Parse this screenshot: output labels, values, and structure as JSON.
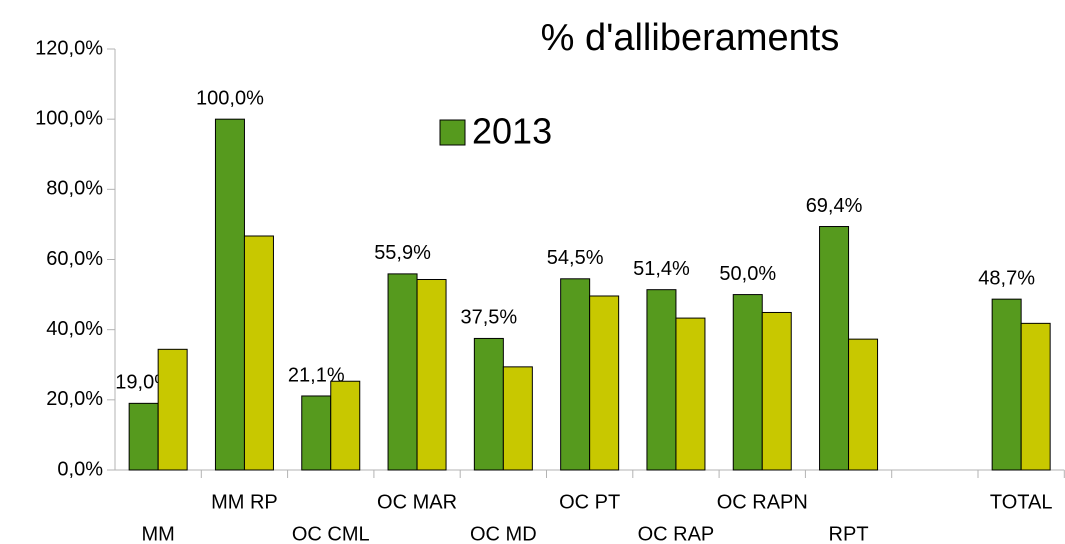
{
  "chart_data": {
    "type": "bar",
    "title": "% d'alliberaments",
    "categories": [
      "MM",
      "MM RP",
      "OC CML",
      "OC MAR",
      "OC MD",
      "OC PT",
      "OC RAP",
      "OC RAPN",
      "RPT",
      null,
      "TOTAL"
    ],
    "series": [
      {
        "name": "2013",
        "color": "#569a1e",
        "values": [
          19.0,
          100.0,
          21.1,
          55.9,
          37.5,
          54.5,
          51.4,
          50.0,
          69.4,
          null,
          48.7
        ],
        "value_labels": [
          "19,0%",
          "100,0%",
          "21,1%",
          "55,9%",
          "37,5%",
          "54,5%",
          "51,4%",
          "50,0%",
          "69,4%",
          null,
          "48,7%"
        ]
      },
      {
        "color": "#c8c800",
        "values": [
          34.4,
          66.7,
          25.3,
          54.3,
          29.4,
          49.6,
          43.3,
          44.9,
          37.3,
          null,
          41.8
        ]
      }
    ],
    "ylim": [
      0,
      120
    ],
    "yticks": [
      {
        "value": 0,
        "label": "0,0%"
      },
      {
        "value": 20,
        "label": "20,0%"
      },
      {
        "value": 40,
        "label": "40,0%"
      },
      {
        "value": 60,
        "label": "60,0%"
      },
      {
        "value": 80,
        "label": "80,0%"
      },
      {
        "value": 100,
        "label": "100,0%"
      },
      {
        "value": 120,
        "label": "120,0%"
      }
    ],
    "grid": false
  }
}
